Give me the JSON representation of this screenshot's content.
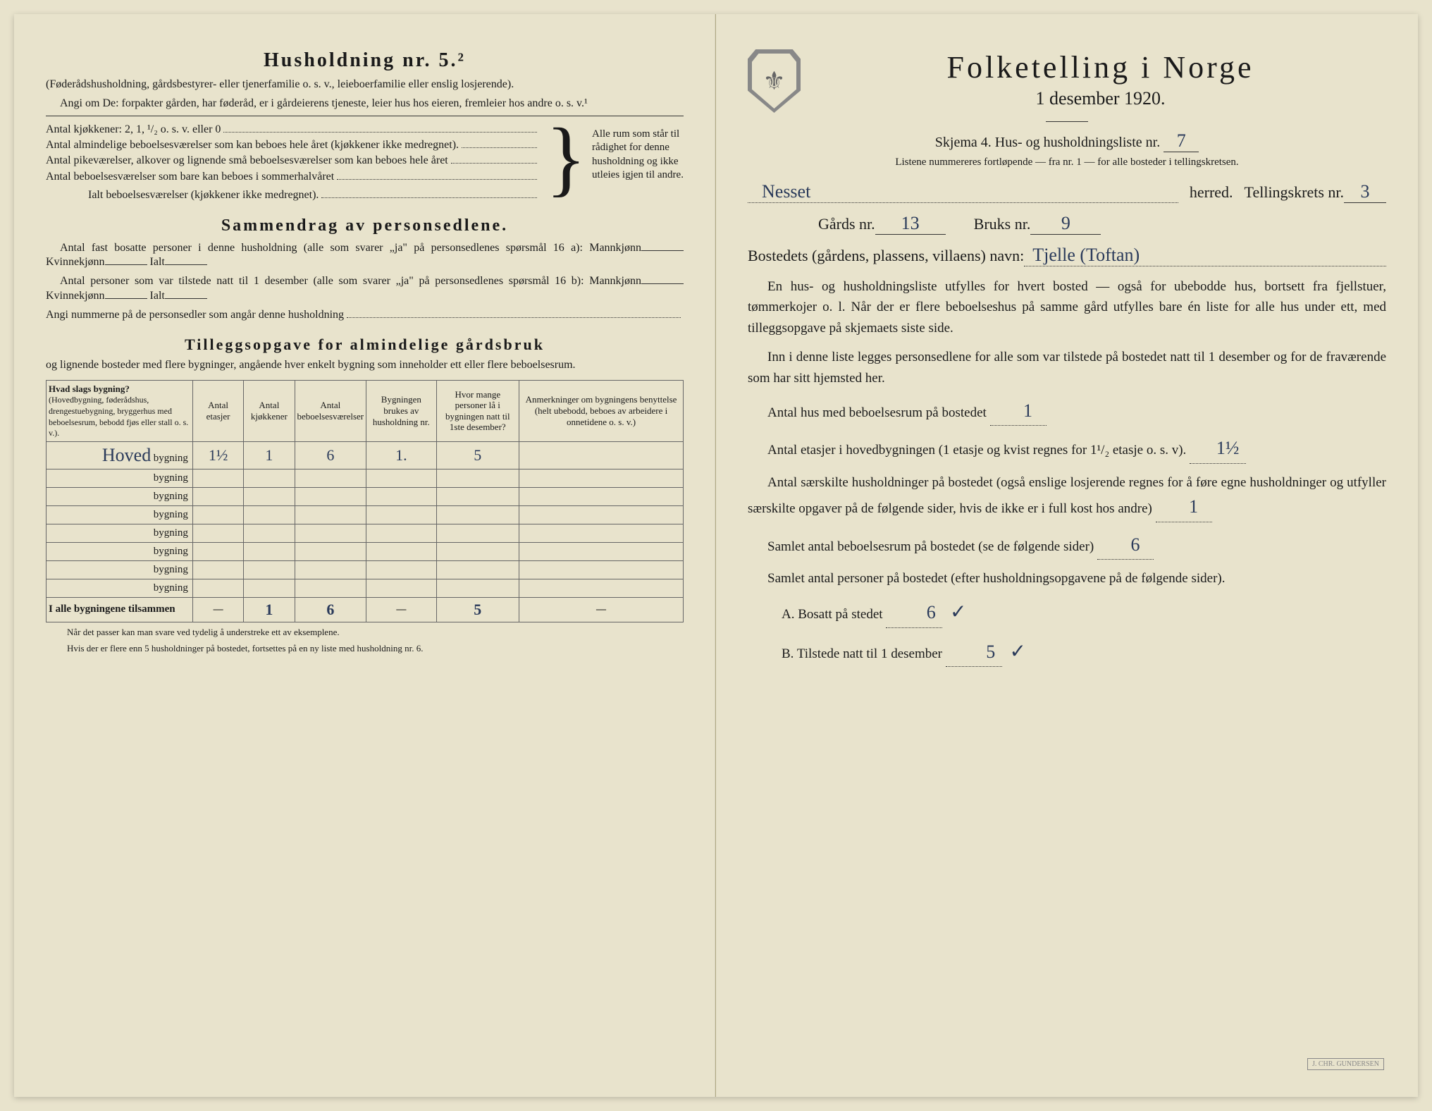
{
  "left": {
    "heading": "Husholdning nr. 5.²",
    "subhead": "(Føderådshusholdning, gårdsbestyrer- eller tjenerfamilie o. s. v., leieboerfamilie eller enslig losjerende).",
    "angiom": "Angi om De: forpakter gården, har føderåd, er i gårdeierens tjeneste, leier hus hos eieren, fremleier hos andre o. s. v.¹",
    "rooms": {
      "kjokken": "Antal kjøkkener: 2, 1, ¹/₂ o. s. v. eller 0",
      "alm": "Antal almindelige beboelsesværelser som kan beboes hele året (kjøkkener ikke medregnet).",
      "pike": "Antal pikeværelser, alkover og lignende små beboelsesværelser som kan beboes hele året",
      "sommer": "Antal beboelsesværelser som bare kan beboes i sommerhalvåret",
      "ialt": "Ialt beboelsesværelser (kjøkkener ikke medregnet).",
      "braceText": "Alle rum som står til rådighet for denne husholdning og ikke utleies igjen til andre."
    },
    "sammendrag": {
      "title": "Sammendrag av personsedlene.",
      "line1a": "Antal fast bosatte personer i denne husholdning (alle som svarer „ja\" på personsedlenes spørsmål 16 a): Mannkjønn",
      "kvinne": "Kvinnekjønn",
      "ialt": "Ialt",
      "line2a": "Antal personer som var tilstede natt til 1 desember (alle som svarer „ja\" på personsedlenes spørsmål 16 b): Mannkjønn",
      "angi": "Angi nummerne på de personsedler som angår denne husholdning"
    },
    "tillegg": {
      "title": "Tilleggsopgave for almindelige gårdsbruk",
      "sub": "og lignende bosteder med flere bygninger, angående hver enkelt bygning som inneholder ett eller flere beboelsesrum."
    },
    "table": {
      "headers": [
        "Hvad slags bygning?",
        "Antal etasjer",
        "Antal kjøkkener",
        "Antal beboelsesværelser",
        "Bygningen brukes av husholdning nr.",
        "Hvor mange personer lå i bygningen natt til 1ste desember?",
        "Anmerkninger om bygningens benyttelse (helt ubebodd, beboes av arbeidere i onnetidene o. s. v.)"
      ],
      "firstColSub": "(Hovedbygning, føderådshus, drengestuebygning, bryggerhus med beboelsesrum, bebodd fjøs eller stall o. s. v.).",
      "rows": [
        {
          "name": "Hoved",
          "etasjer": "1½",
          "kjokken": "1",
          "bebo": "6",
          "hushold": "1.",
          "personer": "5",
          "anm": ""
        },
        {
          "name": "",
          "etasjer": "",
          "kjokken": "",
          "bebo": "",
          "hushold": "",
          "personer": "",
          "anm": ""
        },
        {
          "name": "",
          "etasjer": "",
          "kjokken": "",
          "bebo": "",
          "hushold": "",
          "personer": "",
          "anm": ""
        },
        {
          "name": "",
          "etasjer": "",
          "kjokken": "",
          "bebo": "",
          "hushold": "",
          "personer": "",
          "anm": ""
        },
        {
          "name": "",
          "etasjer": "",
          "kjokken": "",
          "bebo": "",
          "hushold": "",
          "personer": "",
          "anm": ""
        },
        {
          "name": "",
          "etasjer": "",
          "kjokken": "",
          "bebo": "",
          "hushold": "",
          "personer": "",
          "anm": ""
        },
        {
          "name": "",
          "etasjer": "",
          "kjokken": "",
          "bebo": "",
          "hushold": "",
          "personer": "",
          "anm": ""
        },
        {
          "name": "",
          "etasjer": "",
          "kjokken": "",
          "bebo": "",
          "hushold": "",
          "personer": "",
          "anm": ""
        }
      ],
      "totals": {
        "label": "I alle bygningene tilsammen",
        "etasjer": "—",
        "kjokken": "1",
        "bebo": "6",
        "hushold": "—",
        "personer": "5",
        "anm": "—"
      },
      "bygning_label": "bygning"
    },
    "footnotes": [
      "Når det passer kan man svare ved tydelig å understreke ett av eksemplene.",
      "Hvis der er flere enn 5 husholdninger på bostedet, fortsettes på en ny liste med husholdning nr. 6."
    ]
  },
  "right": {
    "title": "Folketelling i Norge",
    "date": "1 desember 1920.",
    "skjema": "Skjema 4.  Hus- og husholdningsliste nr.",
    "skjema_nr": "7",
    "small": "Listene nummereres fortløpende — fra nr. 1 — for alle bosteder i tellingskretsen.",
    "herred_value": "Nesset",
    "herred_label": "herred.",
    "tellingskrets_label": "Tellingskrets nr.",
    "tellingskrets_nr": "3",
    "gards_label": "Gårds nr.",
    "gards_nr": "13",
    "bruks_label": "Bruks nr.",
    "bruks_nr": "9",
    "bosted_label": "Bostedets (gårdens, plassens, villaens) navn:",
    "bosted_value": "Tjelle (Toftan)",
    "para1": "En hus- og husholdningsliste utfylles for hvert bosted — også for ubebodde hus, bortsett fra fjellstuer, tømmerkojer o. l.  Når der er flere beboelseshus på samme gård utfylles bare én liste for alle hus under ett, med tilleggsopgave på skjemaets siste side.",
    "para2": "Inn i denne liste legges personsedlene for alle som var tilstede på bostedet natt til 1 desember og for de fraværende som har sitt hjemsted her.",
    "antal_hus_label": "Antal hus med beboelsesrum på bostedet",
    "antal_hus_value": "1",
    "etasjer_label": "Antal etasjer i hovedbygningen (1 etasje og kvist regnes for 1¹/₂ etasje o. s. v).",
    "etasjer_value": "1½",
    "saerskilte": "Antal særskilte husholdninger på bostedet (også enslige losjerende regnes for å føre egne husholdninger og utfyller særskilte opgaver på de følgende sider, hvis de ikke er i full kost hos andre)",
    "saerskilte_value": "1",
    "samlet_bebo_label": "Samlet antal beboelsesrum på bostedet (se de følgende sider)",
    "samlet_bebo_value": "6",
    "samlet_pers_label": "Samlet antal personer på bostedet (efter husholdningsopgavene på de følgende sider).",
    "a_label": "A.  Bosatt på stedet",
    "a_value": "6",
    "b_label": "B.  Tilstede natt til 1 desember",
    "b_value": "5",
    "stamp": "J. CHR. GUNDERSEN"
  },
  "colors": {
    "paper": "#e8e3cc",
    "ink": "#1a1a1a",
    "handwriting": "#2a3a5a",
    "border": "#666"
  }
}
